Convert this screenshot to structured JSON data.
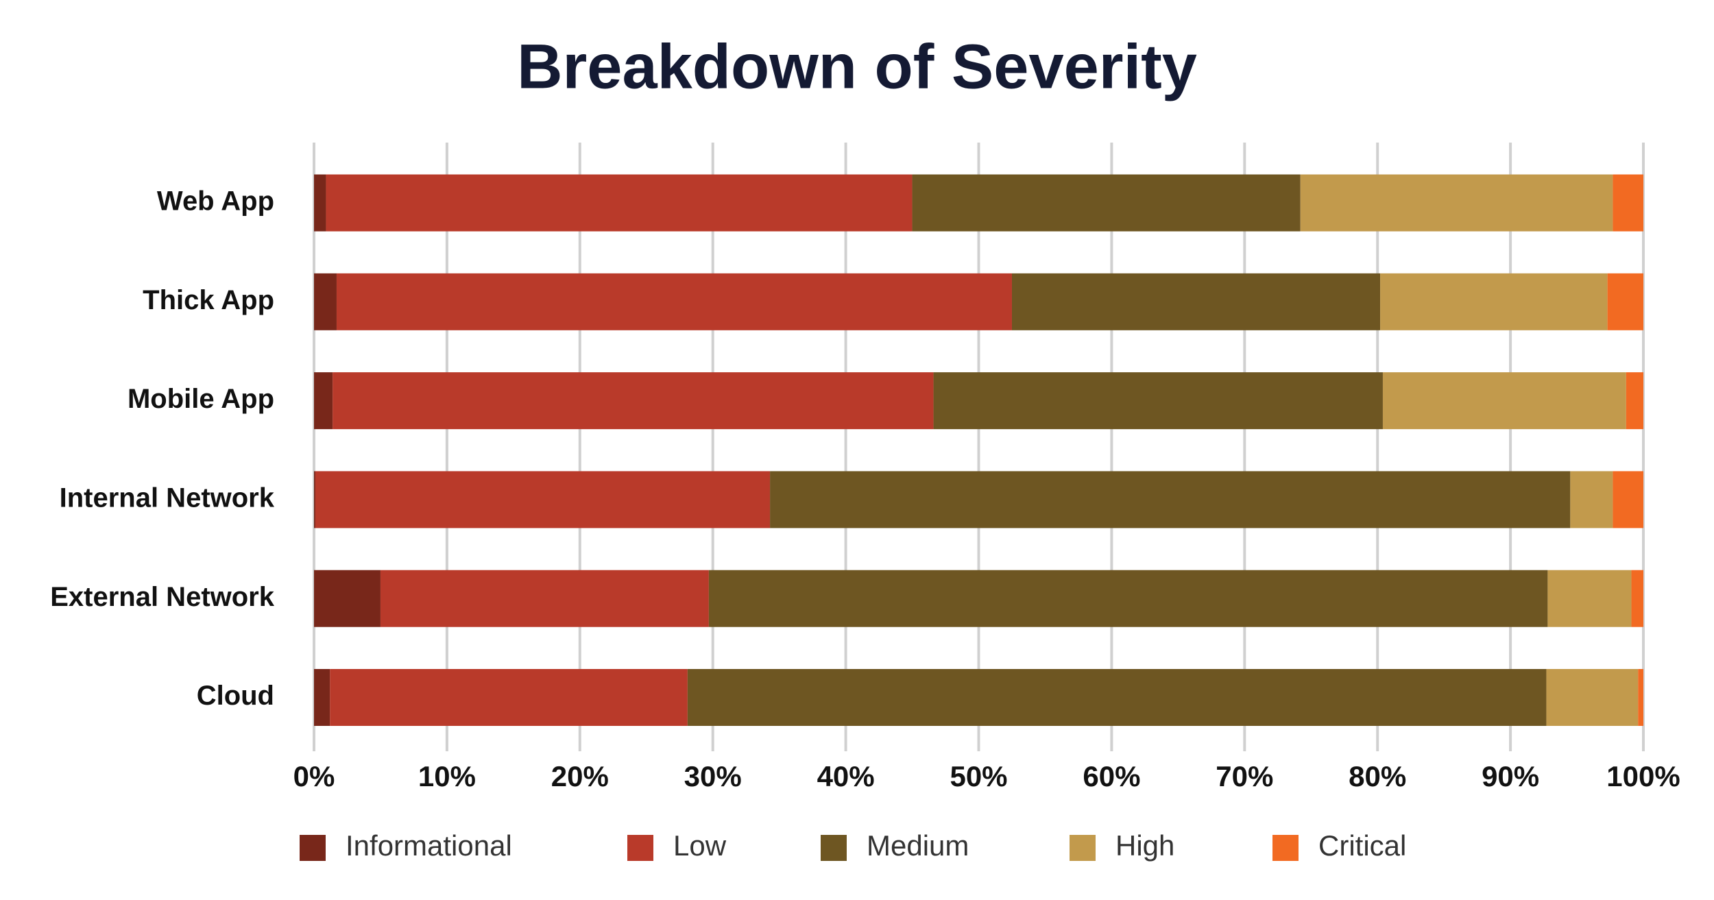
{
  "chart_data": {
    "type": "stacked-barh",
    "title": "Breakdown of Severity",
    "categories": [
      "Web App",
      "Thick App",
      "Mobile App",
      "Internal Network",
      "External Network",
      "Cloud"
    ],
    "series": [
      {
        "name": "Informational",
        "color": "#78271a",
        "values": [
          0.9,
          1.7,
          1.4,
          0.1,
          5.0,
          1.2
        ]
      },
      {
        "name": "Low",
        "color": "#b93a2a",
        "values": [
          44.1,
          50.8,
          45.2,
          34.2,
          24.7,
          26.9
        ]
      },
      {
        "name": "Medium",
        "color": "#6e5622",
        "values": [
          29.2,
          27.7,
          33.8,
          60.2,
          63.1,
          64.6
        ]
      },
      {
        "name": "High",
        "color": "#c29a4c",
        "values": [
          23.5,
          17.1,
          18.3,
          3.2,
          6.3,
          6.9
        ]
      },
      {
        "name": "Critical",
        "color": "#f26a22",
        "values": [
          2.3,
          2.7,
          1.3,
          2.3,
          0.9,
          0.4
        ]
      }
    ],
    "xlim": [
      0,
      100
    ],
    "xticks": [
      {
        "value": 0,
        "label": "0%"
      },
      {
        "value": 10,
        "label": "10%"
      },
      {
        "value": 20,
        "label": "20%"
      },
      {
        "value": 30,
        "label": "30%"
      },
      {
        "value": 40,
        "label": "40%"
      },
      {
        "value": 50,
        "label": "50%"
      },
      {
        "value": 60,
        "label": "60%"
      },
      {
        "value": 70,
        "label": "70%"
      },
      {
        "value": 80,
        "label": "80%"
      },
      {
        "value": 90,
        "label": "90%"
      },
      {
        "value": 100,
        "label": "100%"
      }
    ],
    "grid": true
  }
}
